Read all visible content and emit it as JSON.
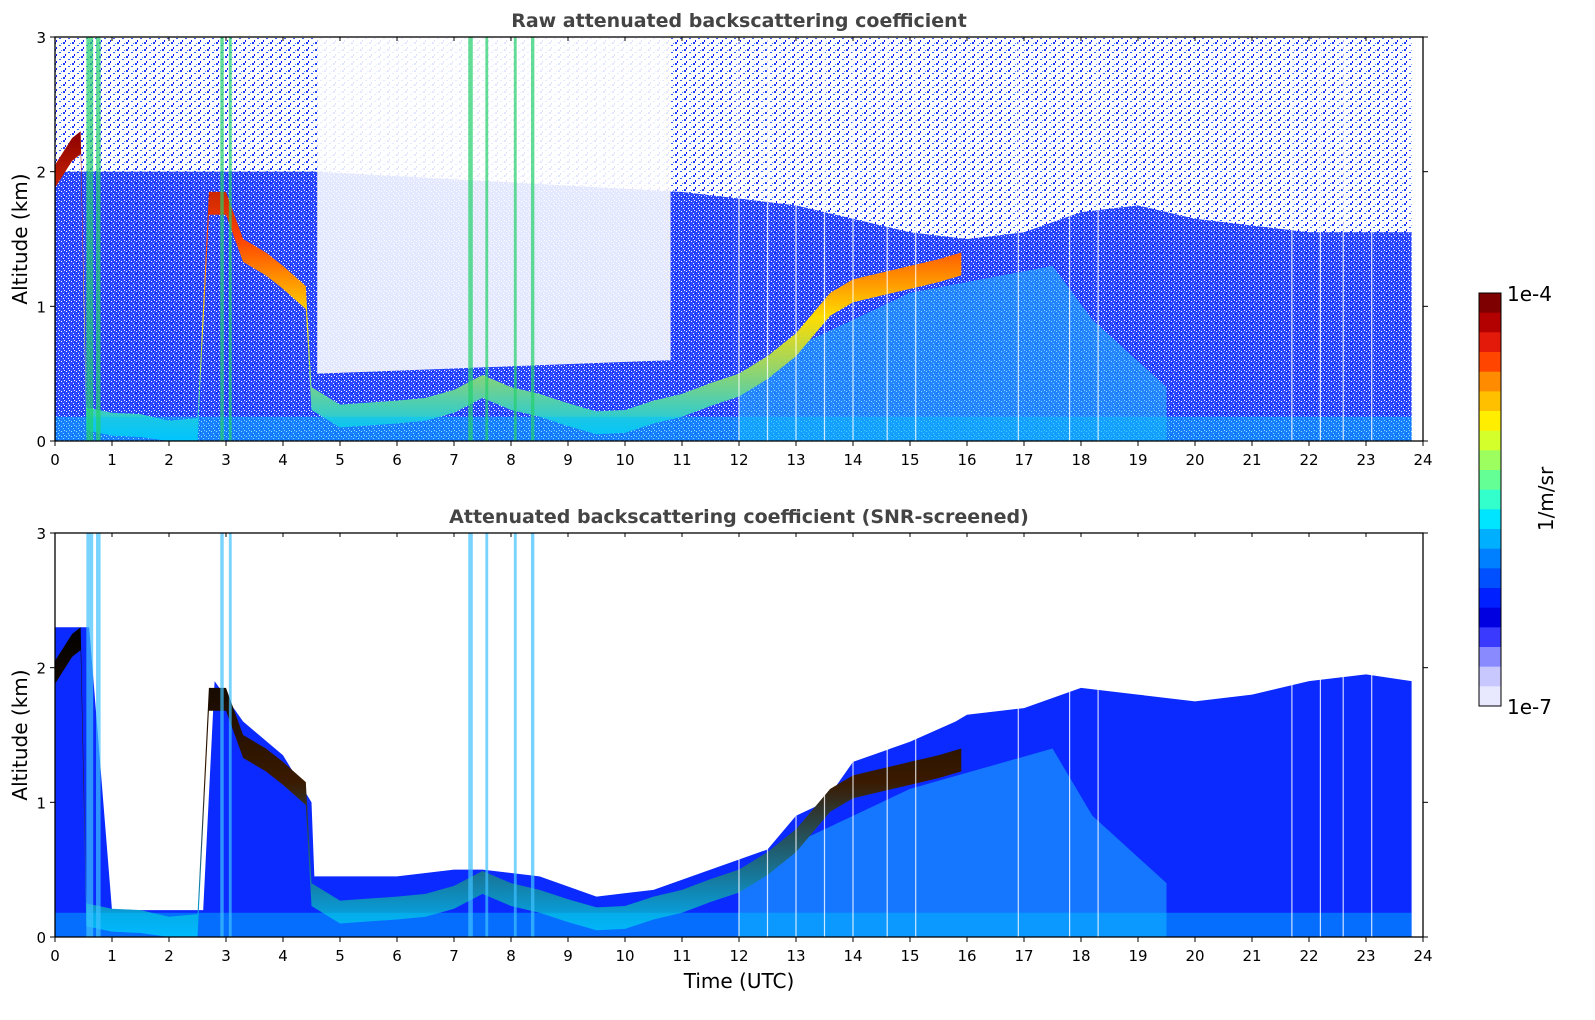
{
  "chart_data": [
    {
      "type": "heatmap",
      "title": "Raw attenuated backscattering coefficient",
      "xlabel": "",
      "ylabel": "Altitude (km)",
      "xlim": [
        0,
        24
      ],
      "ylim": [
        0,
        3
      ],
      "x_ticks": [
        "0",
        "1",
        "2",
        "3",
        "4",
        "5",
        "6",
        "7",
        "8",
        "9",
        "10",
        "11",
        "12",
        "13",
        "14",
        "15",
        "16",
        "17",
        "18",
        "19",
        "20",
        "21",
        "22",
        "23",
        "24"
      ],
      "y_ticks": [
        "0",
        "1",
        "2",
        "3"
      ],
      "data_end_x": 23.8,
      "noise_top": [
        [
          0,
          2.0
        ],
        [
          4.6,
          2.0
        ],
        [
          11,
          1.85
        ],
        [
          13,
          1.75
        ],
        [
          15,
          1.55
        ],
        [
          16,
          1.5
        ],
        [
          17,
          1.55
        ],
        [
          18,
          1.7
        ],
        [
          19,
          1.75
        ],
        [
          20,
          1.65
        ],
        [
          22,
          1.55
        ],
        [
          23.8,
          1.55
        ]
      ],
      "boundary_layer": [
        [
          0,
          2.0
        ],
        [
          0.3,
          2.2
        ],
        [
          0.45,
          2.25
        ],
        [
          0.55,
          0.2
        ],
        [
          1.0,
          0.16
        ],
        [
          1.5,
          0.15
        ],
        [
          2.0,
          0.1
        ],
        [
          2.5,
          0.12
        ],
        [
          2.7,
          1.8
        ],
        [
          3.0,
          1.8
        ],
        [
          3.3,
          1.45
        ],
        [
          3.7,
          1.35
        ],
        [
          4.0,
          1.25
        ],
        [
          4.4,
          1.1
        ],
        [
          4.5,
          0.35
        ],
        [
          5.0,
          0.22
        ],
        [
          6.0,
          0.25
        ],
        [
          6.5,
          0.27
        ],
        [
          7.0,
          0.33
        ],
        [
          7.5,
          0.44
        ],
        [
          8.0,
          0.35
        ],
        [
          8.5,
          0.3
        ],
        [
          9.0,
          0.23
        ],
        [
          9.5,
          0.17
        ],
        [
          10.0,
          0.18
        ],
        [
          10.5,
          0.25
        ],
        [
          11.0,
          0.3
        ],
        [
          11.5,
          0.38
        ],
        [
          12.0,
          0.45
        ],
        [
          12.5,
          0.58
        ],
        [
          13.0,
          0.75
        ],
        [
          13.3,
          0.9
        ],
        [
          13.6,
          1.05
        ],
        [
          14.0,
          1.15
        ],
        [
          14.5,
          1.2
        ],
        [
          15.0,
          1.25
        ],
        [
          15.5,
          1.3
        ],
        [
          15.9,
          1.35
        ]
      ],
      "colormap": "jet",
      "colorbar": {
        "min": "1e-7",
        "max": "1e-4",
        "label": "1/m/sr",
        "scale": "log"
      }
    },
    {
      "type": "heatmap",
      "title": "Attenuated backscattering coefficient (SNR-screened)",
      "xlabel": "Time (UTC)",
      "ylabel": "Altitude (km)",
      "xlim": [
        0,
        24
      ],
      "ylim": [
        0,
        3
      ],
      "x_ticks": [
        "0",
        "1",
        "2",
        "3",
        "4",
        "5",
        "6",
        "7",
        "8",
        "9",
        "10",
        "11",
        "12",
        "13",
        "14",
        "15",
        "16",
        "17",
        "18",
        "19",
        "20",
        "21",
        "22",
        "23",
        "24"
      ],
      "y_ticks": [
        "0",
        "1",
        "2",
        "3"
      ],
      "data_end_x": 23.8,
      "mask_top": [
        [
          0,
          2.3
        ],
        [
          0.6,
          2.3
        ],
        [
          1.0,
          0.2
        ],
        [
          2.6,
          0.2
        ],
        [
          2.8,
          1.9
        ],
        [
          3.3,
          1.6
        ],
        [
          4.0,
          1.35
        ],
        [
          4.5,
          1.0
        ],
        [
          4.55,
          0.45
        ],
        [
          6.0,
          0.45
        ],
        [
          7.0,
          0.5
        ],
        [
          7.5,
          0.5
        ],
        [
          8.5,
          0.45
        ],
        [
          9.5,
          0.3
        ],
        [
          10.5,
          0.35
        ],
        [
          11.5,
          0.5
        ],
        [
          12.5,
          0.65
        ],
        [
          13.0,
          0.9
        ],
        [
          13.5,
          1.0
        ],
        [
          14.0,
          1.3
        ],
        [
          15.0,
          1.45
        ],
        [
          15.8,
          1.6
        ],
        [
          16.0,
          1.65
        ],
        [
          17.0,
          1.7
        ],
        [
          18.0,
          1.85
        ],
        [
          19.0,
          1.8
        ],
        [
          20.0,
          1.75
        ],
        [
          21.0,
          1.8
        ],
        [
          22.0,
          1.9
        ],
        [
          23.0,
          1.95
        ],
        [
          23.8,
          1.9
        ]
      ],
      "colormap": "jet",
      "colorbar": {
        "min": "1e-7",
        "max": "1e-4",
        "label": "1/m/sr",
        "scale": "log"
      }
    }
  ],
  "colorbar": {
    "max_label": "1e-4",
    "min_label": "1e-7",
    "unit_label": "1/m/sr",
    "colors": [
      "#7f0000",
      "#b30000",
      "#e31a0a",
      "#ff4500",
      "#ff8c00",
      "#ffc000",
      "#ffee00",
      "#d4ff2a",
      "#9cff5f",
      "#64ff95",
      "#33ffcc",
      "#00e5ff",
      "#00b0ff",
      "#0080ff",
      "#0050ff",
      "#0020ff",
      "#0000e0",
      "#3a3aff",
      "#8a8aff",
      "#c8c8ff",
      "#e8e8ff"
    ]
  }
}
